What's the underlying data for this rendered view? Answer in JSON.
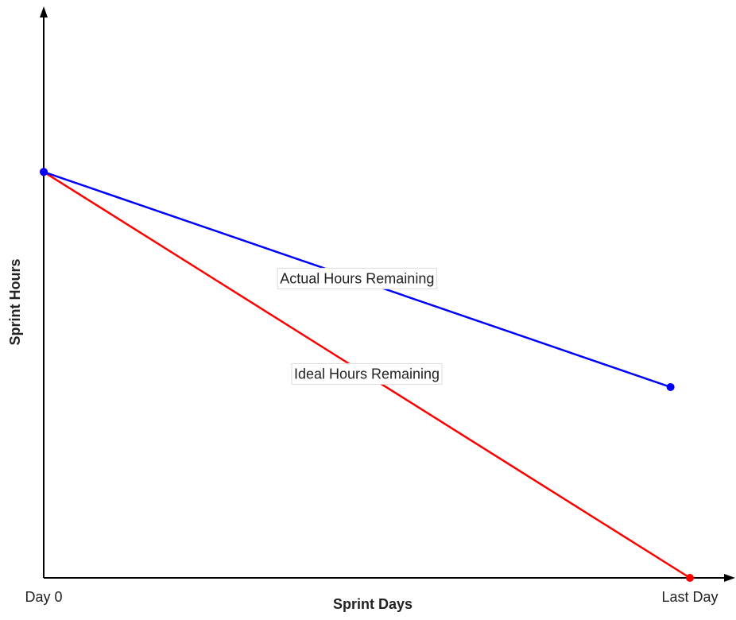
{
  "chart_data": {
    "type": "line",
    "x_label": "Sprint Days",
    "y_label": "Sprint Hours",
    "xlim": [
      0,
      10
    ],
    "xticks": [
      {
        "value": 0,
        "label": "Day 0"
      },
      {
        "value": 10,
        "label": "Last Day"
      }
    ],
    "ylim": [
      0,
      140
    ],
    "series": [
      {
        "name": "Ideal Hours Remaining",
        "color": "#ff0000",
        "x": [
          0,
          10
        ],
        "values": [
          100,
          0
        ]
      },
      {
        "name": "Actual Hours Remaining",
        "color": "#0000ff",
        "x": [
          0,
          9.7
        ],
        "values": [
          100,
          47
        ]
      }
    ]
  }
}
